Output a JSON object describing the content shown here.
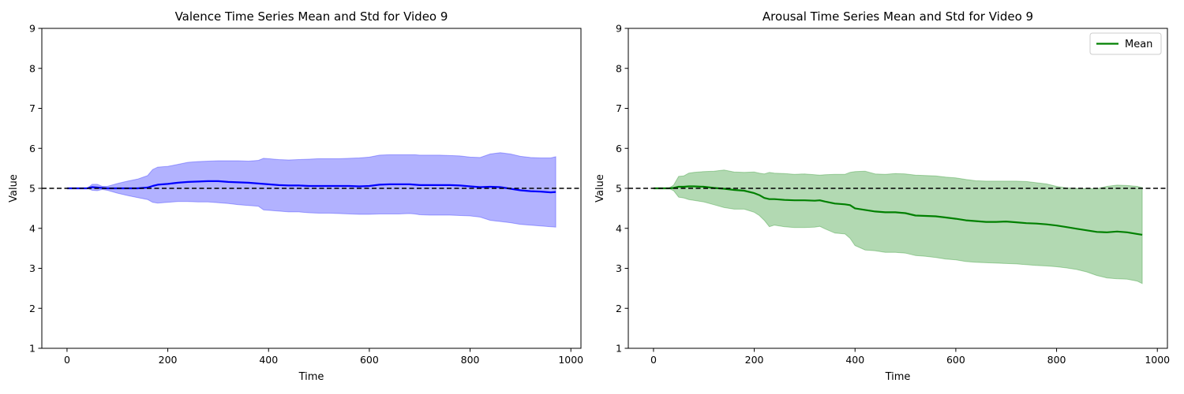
{
  "chart_data": [
    {
      "type": "line",
      "title": "Valence Time Series Mean and Std for Video 9",
      "xlabel": "Time",
      "ylabel": "Value",
      "xlim": [
        -50,
        1020
      ],
      "ylim": [
        1,
        9
      ],
      "xticks": [
        0,
        200,
        400,
        600,
        800,
        1000
      ],
      "yticks": [
        1,
        2,
        3,
        4,
        5,
        6,
        7,
        8,
        9
      ],
      "reference_line": 5,
      "grid": false,
      "color": "#0000ff",
      "legend": null,
      "x": [
        0,
        40,
        50,
        60,
        70,
        80,
        100,
        120,
        140,
        160,
        170,
        180,
        200,
        220,
        240,
        260,
        280,
        300,
        320,
        340,
        360,
        380,
        390,
        400,
        420,
        440,
        460,
        480,
        500,
        520,
        540,
        560,
        580,
        600,
        620,
        640,
        660,
        680,
        690,
        700,
        720,
        740,
        760,
        780,
        800,
        820,
        840,
        860,
        880,
        900,
        920,
        940,
        960,
        970
      ],
      "mean": [
        5.0,
        5.0,
        5.03,
        5.02,
        5.01,
        5.0,
        5.0,
        5.0,
        5.0,
        5.02,
        5.06,
        5.09,
        5.11,
        5.14,
        5.16,
        5.17,
        5.18,
        5.18,
        5.16,
        5.15,
        5.14,
        5.12,
        5.11,
        5.1,
        5.08,
        5.07,
        5.07,
        5.06,
        5.06,
        5.06,
        5.06,
        5.06,
        5.05,
        5.06,
        5.09,
        5.1,
        5.1,
        5.1,
        5.09,
        5.08,
        5.08,
        5.08,
        5.08,
        5.07,
        5.05,
        5.03,
        5.04,
        5.03,
        4.99,
        4.95,
        4.93,
        4.92,
        4.9,
        4.91
      ],
      "upper": [
        5.0,
        5.0,
        5.1,
        5.1,
        5.05,
        5.05,
        5.12,
        5.18,
        5.23,
        5.32,
        5.47,
        5.53,
        5.55,
        5.6,
        5.65,
        5.67,
        5.68,
        5.69,
        5.69,
        5.69,
        5.68,
        5.7,
        5.75,
        5.74,
        5.72,
        5.71,
        5.72,
        5.73,
        5.74,
        5.74,
        5.74,
        5.75,
        5.76,
        5.78,
        5.83,
        5.84,
        5.84,
        5.84,
        5.84,
        5.83,
        5.83,
        5.83,
        5.82,
        5.81,
        5.78,
        5.77,
        5.86,
        5.89,
        5.86,
        5.8,
        5.77,
        5.76,
        5.76,
        5.79
      ],
      "lower": [
        5.0,
        5.0,
        4.95,
        4.94,
        4.97,
        4.95,
        4.88,
        4.82,
        4.77,
        4.72,
        4.65,
        4.63,
        4.65,
        4.67,
        4.67,
        4.66,
        4.66,
        4.64,
        4.62,
        4.59,
        4.57,
        4.55,
        4.46,
        4.45,
        4.43,
        4.41,
        4.41,
        4.39,
        4.38,
        4.38,
        4.37,
        4.36,
        4.35,
        4.35,
        4.36,
        4.36,
        4.36,
        4.37,
        4.36,
        4.34,
        4.33,
        4.33,
        4.33,
        4.32,
        4.31,
        4.28,
        4.2,
        4.17,
        4.14,
        4.1,
        4.08,
        4.06,
        4.04,
        4.03
      ]
    },
    {
      "type": "line",
      "title": "Arousal Time Series Mean and Std for Video 9",
      "xlabel": "Time",
      "ylabel": "Value",
      "xlim": [
        -50,
        1020
      ],
      "ylim": [
        1,
        9
      ],
      "xticks": [
        0,
        200,
        400,
        600,
        800,
        1000
      ],
      "yticks": [
        1,
        2,
        3,
        4,
        5,
        6,
        7,
        8,
        9
      ],
      "reference_line": 5,
      "grid": false,
      "color": "#008000",
      "legend": {
        "entries": [
          "Mean"
        ],
        "placement": "top-right"
      },
      "series_name": "Mean",
      "x": [
        0,
        30,
        40,
        50,
        60,
        70,
        80,
        100,
        120,
        140,
        160,
        180,
        200,
        210,
        220,
        230,
        240,
        260,
        280,
        300,
        320,
        330,
        340,
        360,
        380,
        390,
        400,
        420,
        440,
        460,
        480,
        500,
        520,
        540,
        560,
        580,
        600,
        620,
        640,
        660,
        680,
        700,
        720,
        740,
        760,
        780,
        800,
        820,
        840,
        860,
        880,
        900,
        920,
        940,
        960,
        970
      ],
      "mean": [
        5.0,
        5.0,
        5.01,
        5.04,
        5.04,
        5.05,
        5.05,
        5.04,
        5.01,
        4.99,
        4.96,
        4.94,
        4.88,
        4.83,
        4.76,
        4.73,
        4.73,
        4.71,
        4.7,
        4.7,
        4.69,
        4.7,
        4.67,
        4.62,
        4.6,
        4.58,
        4.5,
        4.46,
        4.42,
        4.4,
        4.4,
        4.38,
        4.32,
        4.31,
        4.3,
        4.27,
        4.24,
        4.2,
        4.18,
        4.16,
        4.16,
        4.17,
        4.15,
        4.13,
        4.12,
        4.1,
        4.07,
        4.03,
        3.99,
        3.95,
        3.91,
        3.9,
        3.92,
        3.9,
        3.86,
        3.84
      ],
      "upper": [
        5.0,
        5.0,
        5.08,
        5.3,
        5.31,
        5.38,
        5.4,
        5.42,
        5.43,
        5.46,
        5.41,
        5.4,
        5.41,
        5.38,
        5.36,
        5.4,
        5.38,
        5.37,
        5.35,
        5.36,
        5.34,
        5.33,
        5.34,
        5.35,
        5.35,
        5.4,
        5.42,
        5.43,
        5.36,
        5.35,
        5.37,
        5.36,
        5.33,
        5.32,
        5.31,
        5.28,
        5.26,
        5.22,
        5.19,
        5.18,
        5.18,
        5.18,
        5.18,
        5.17,
        5.14,
        5.11,
        5.05,
        5.01,
        5.0,
        4.99,
        4.99,
        5.05,
        5.08,
        5.07,
        5.05,
        5.02
      ],
      "lower": [
        5.0,
        5.0,
        4.94,
        4.78,
        4.76,
        4.72,
        4.7,
        4.66,
        4.59,
        4.52,
        4.48,
        4.48,
        4.4,
        4.32,
        4.2,
        4.04,
        4.08,
        4.04,
        4.02,
        4.02,
        4.03,
        4.05,
        3.99,
        3.88,
        3.86,
        3.75,
        3.57,
        3.46,
        3.44,
        3.4,
        3.4,
        3.38,
        3.32,
        3.3,
        3.27,
        3.23,
        3.21,
        3.17,
        3.15,
        3.14,
        3.13,
        3.12,
        3.11,
        3.09,
        3.07,
        3.06,
        3.04,
        3.01,
        2.97,
        2.91,
        2.82,
        2.76,
        2.74,
        2.73,
        2.68,
        2.62
      ]
    }
  ]
}
